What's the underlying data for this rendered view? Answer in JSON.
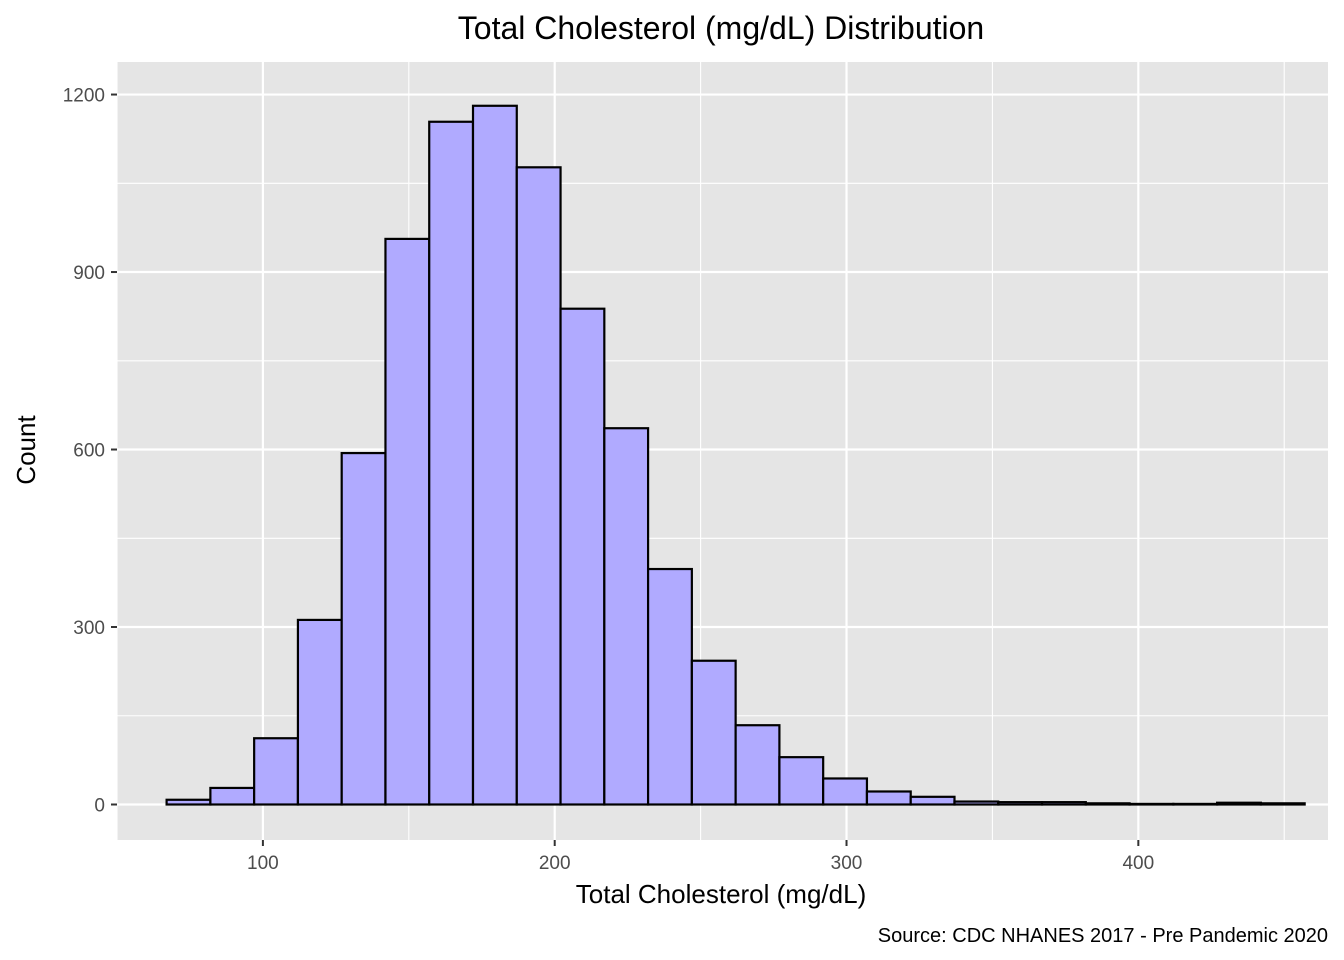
{
  "chart_data": {
    "type": "bar",
    "subtype": "histogram",
    "title": "Total Cholesterol (mg/dL) Distribution",
    "xlabel": "Total Cholesterol (mg/dL)",
    "ylabel": "Count",
    "caption": "Source: CDC NHANES 2017 - Pre Pandemic 2020",
    "xlim": [
      50,
      465
    ],
    "ylim": [
      -60,
      1255
    ],
    "x_ticks": [
      100,
      200,
      300,
      400
    ],
    "x_tick_labels": [
      "100",
      "200",
      "300",
      "400"
    ],
    "x_minor_ticks": [
      50,
      150,
      250,
      350,
      450
    ],
    "y_ticks": [
      0,
      300,
      600,
      900,
      1200
    ],
    "y_tick_labels": [
      "0",
      "300",
      "600",
      "900",
      "1200"
    ],
    "y_minor_ticks": [
      150,
      450,
      750,
      1050
    ],
    "grid": true,
    "bin_width": 15,
    "bin_starts": [
      67,
      82,
      97,
      112,
      127,
      142,
      157,
      172,
      187,
      202,
      217,
      232,
      247,
      262,
      277,
      292,
      307,
      322,
      337,
      352,
      367,
      382,
      397,
      412,
      427,
      442
    ],
    "values": [
      8,
      28,
      112,
      312,
      594,
      956,
      1154,
      1181,
      1077,
      838,
      636,
      398,
      243,
      134,
      80,
      44,
      22,
      13,
      5,
      4,
      4,
      2,
      1,
      1,
      3,
      2
    ],
    "colors": {
      "panel": "#e5e5e5",
      "grid_major": "#ffffff",
      "bar_fill": "#b0aaff",
      "bar_stroke": "#000000",
      "tick_text": "#4d4d4d",
      "tick_mark": "#333333"
    }
  }
}
